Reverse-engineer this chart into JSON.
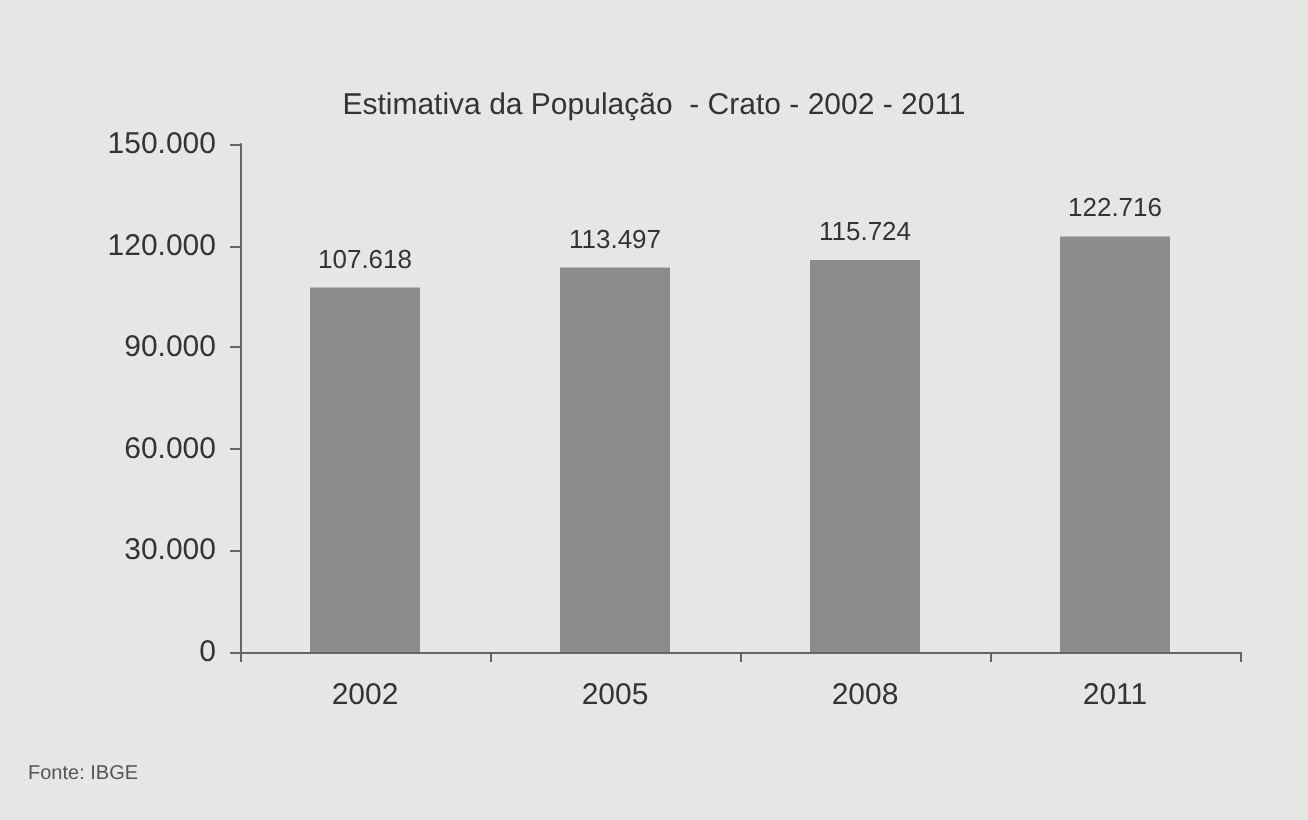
{
  "chart_data": {
    "type": "bar",
    "title": "Estimativa da População  - Crato - 2002 - 2011",
    "categories": [
      "2002",
      "2005",
      "2008",
      "2011"
    ],
    "values": [
      107618,
      113497,
      115724,
      122716
    ],
    "value_labels": [
      "107.618",
      "113.497",
      "115.724",
      "122.716"
    ],
    "color": "#8c8c8c",
    "ylim": [
      0,
      150000
    ],
    "yticks": [
      {
        "value": 0,
        "label": "0"
      },
      {
        "value": 30000,
        "label": "30.000"
      },
      {
        "value": 60000,
        "label": "60.000"
      },
      {
        "value": 90000,
        "label": "90.000"
      },
      {
        "value": 120000,
        "label": "120.000"
      },
      {
        "value": 150000,
        "label": "150.000"
      }
    ],
    "grid": false,
    "annotations": [
      "Fonte: IBGE"
    ]
  }
}
